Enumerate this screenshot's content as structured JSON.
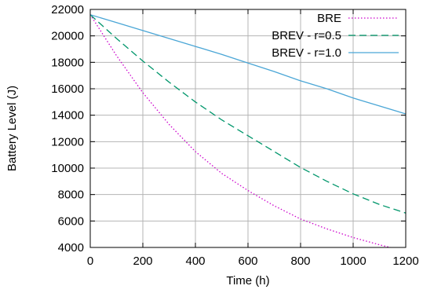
{
  "chart_data": {
    "type": "line",
    "title": "",
    "xlabel": "Time (h)",
    "ylabel": "Battery Level (J)",
    "xlim": [
      0,
      1200
    ],
    "ylim": [
      4000,
      22000
    ],
    "x_ticks": [
      "0",
      "200",
      "400",
      "600",
      "800",
      "1000",
      "1200"
    ],
    "y_ticks": [
      "4000",
      "6000",
      "8000",
      "10000",
      "12000",
      "14000",
      "16000",
      "18000",
      "20000",
      "22000"
    ],
    "grid": true,
    "legend_position": "top-right",
    "series": [
      {
        "name": "BRE",
        "color": "#cc00cc",
        "dash": "dotted",
        "x": [
          0,
          100,
          200,
          300,
          400,
          500,
          600,
          700,
          800,
          900,
          1000,
          1100,
          1150
        ],
        "y": [
          21600,
          18500,
          15700,
          13300,
          11250,
          9600,
          8300,
          7150,
          6150,
          5400,
          4750,
          4200,
          3950
        ]
      },
      {
        "name": "BREV - r=0.5",
        "color": "#00966b",
        "dash": "dashed",
        "x": [
          0,
          100,
          200,
          300,
          400,
          500,
          600,
          700,
          800,
          900,
          1000,
          1100,
          1200
        ],
        "y": [
          21600,
          19800,
          18100,
          16500,
          15000,
          13650,
          12450,
          11250,
          10050,
          9000,
          8050,
          7250,
          6600
        ]
      },
      {
        "name": "BREV - r=1.0",
        "color": "#4aa6d6",
        "dash": "solid",
        "x": [
          0,
          100,
          200,
          300,
          400,
          500,
          600,
          700,
          800,
          900,
          1000,
          1100,
          1200
        ],
        "y": [
          21600,
          21000,
          20400,
          19800,
          19200,
          18600,
          17950,
          17300,
          16600,
          16000,
          15300,
          14700,
          14100
        ]
      }
    ]
  }
}
